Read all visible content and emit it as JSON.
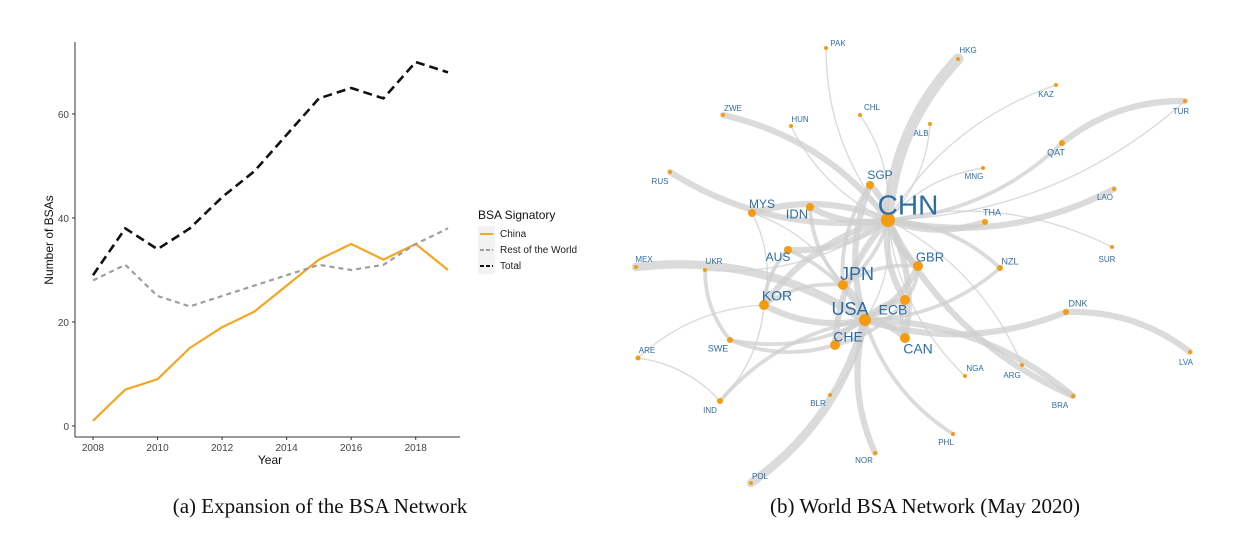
{
  "chart_data": [
    {
      "type": "line",
      "caption": "(a) Expansion of the BSA Network",
      "xlabel": "Year",
      "ylabel": "Number of BSAs",
      "x": [
        2008,
        2009,
        2010,
        2011,
        2012,
        2013,
        2014,
        2015,
        2016,
        2017,
        2018,
        2019
      ],
      "xticks": [
        "2008",
        "2010",
        "2012",
        "2014",
        "2016",
        "2018"
      ],
      "yticks": [
        "0",
        "20",
        "40",
        "60"
      ],
      "xlim": [
        2007.5,
        2019.5
      ],
      "ylim": [
        -2,
        72
      ],
      "grid": false,
      "legend": {
        "title": "BSA Signatory",
        "placement": "right"
      },
      "series": [
        {
          "name": "China",
          "color": "#F5A623",
          "style": "solid",
          "values": [
            1,
            7,
            9,
            15,
            19,
            22,
            27,
            32,
            35,
            32,
            35,
            30
          ]
        },
        {
          "name": "Rest of the World",
          "color": "#9E9E9E",
          "style": "dotted-dash",
          "values": [
            28,
            31,
            25,
            23,
            25,
            27,
            29,
            31,
            30,
            31,
            35,
            38
          ]
        },
        {
          "name": "Total",
          "color": "#111111",
          "style": "dashed",
          "values": [
            29,
            38,
            34,
            38,
            44,
            49,
            56,
            63,
            65,
            63,
            70,
            68
          ]
        }
      ]
    },
    {
      "type": "network",
      "caption": "(b) World BSA Network (May 2020)",
      "node_color": "#F39C12",
      "label_color": "#2E6DA4",
      "edge_color": "#CFCFCF",
      "nodes": [
        "CHN",
        "USA",
        "JPN",
        "KOR",
        "ECB",
        "CHE",
        "CAN",
        "GBR",
        "AUS",
        "IDN",
        "MYS",
        "SGP",
        "THA",
        "NZL",
        "SWE",
        "UKR",
        "MEX",
        "ARE",
        "IND",
        "BLR",
        "NOR",
        "POL",
        "PHL",
        "NGA",
        "BRA",
        "ARG",
        "DNK",
        "LVA",
        "SUR",
        "LAO",
        "TUR",
        "QAT",
        "KAZ",
        "MNG",
        "ALB",
        "HKG",
        "PAK",
        "CHL",
        "HUN",
        "ZWE",
        "RUS"
      ],
      "edges": [
        [
          "CHN",
          "HKG",
          5
        ],
        [
          "CHN",
          "TUR",
          1
        ],
        [
          "QAT",
          "TUR",
          3
        ],
        [
          "CHN",
          "QAT",
          2
        ],
        [
          "CHN",
          "KAZ",
          1
        ],
        [
          "CHN",
          "LAO",
          3
        ],
        [
          "CHN",
          "MNG",
          1
        ],
        [
          "CHN",
          "ALB",
          1
        ],
        [
          "CHN",
          "PAK",
          1
        ],
        [
          "CHN",
          "CHL",
          1
        ],
        [
          "CHN",
          "HUN",
          1
        ],
        [
          "CHN",
          "ZWE",
          3
        ],
        [
          "CHN",
          "RUS",
          3
        ],
        [
          "CHN",
          "THA",
          3
        ],
        [
          "CHN",
          "SUR",
          1
        ],
        [
          "CHN",
          "MYS",
          3
        ],
        [
          "CHN",
          "IDN",
          3
        ],
        [
          "CHN",
          "SGP",
          3
        ],
        [
          "CHN",
          "AUS",
          3
        ],
        [
          "CHN",
          "KOR",
          3
        ],
        [
          "CHN",
          "JPN",
          2
        ],
        [
          "CHN",
          "GBR",
          3
        ],
        [
          "CHN",
          "NZL",
          2
        ],
        [
          "CHN",
          "ECB",
          3
        ],
        [
          "CHN",
          "CAN",
          3
        ],
        [
          "CHN",
          "CHE",
          3
        ],
        [
          "CHN",
          "ARG",
          1
        ],
        [
          "CHN",
          "NGA",
          1
        ],
        [
          "CHN",
          "UKR",
          1
        ],
        [
          "CHN",
          "BRA",
          3
        ],
        [
          "CHN",
          "USA",
          1
        ],
        [
          "USA",
          "JPN",
          3
        ],
        [
          "USA",
          "ECB",
          3
        ],
        [
          "USA",
          "CHE",
          3
        ],
        [
          "USA",
          "CAN",
          3
        ],
        [
          "USA",
          "GBR",
          3
        ],
        [
          "USA",
          "KOR",
          3
        ],
        [
          "USA",
          "MEX",
          4
        ],
        [
          "USA",
          "SWE",
          2
        ],
        [
          "USA",
          "DNK",
          3
        ],
        [
          "DNK",
          "LVA",
          3
        ],
        [
          "USA",
          "NOR",
          3
        ],
        [
          "USA",
          "POL",
          4
        ],
        [
          "USA",
          "PHL",
          2
        ],
        [
          "USA",
          "BLR",
          1
        ],
        [
          "USA",
          "IND",
          2
        ],
        [
          "USA",
          "SGP",
          3
        ],
        [
          "USA",
          "AUS",
          2
        ],
        [
          "USA",
          "BRA",
          3
        ],
        [
          "USA",
          "NZL",
          2
        ],
        [
          "JPN",
          "IDN",
          2
        ],
        [
          "JPN",
          "MYS",
          1
        ],
        [
          "JPN",
          "SGP",
          2
        ],
        [
          "JPN",
          "KOR",
          2
        ],
        [
          "JPN",
          "GBR",
          2
        ],
        [
          "ECB",
          "GBR",
          2
        ],
        [
          "ECB",
          "CHE",
          2
        ],
        [
          "ECB",
          "CAN",
          2
        ],
        [
          "KOR",
          "IND",
          1
        ],
        [
          "KOR",
          "ARE",
          1
        ],
        [
          "ARE",
          "IND",
          1
        ],
        [
          "KOR",
          "MYS",
          1
        ],
        [
          "KOR",
          "AUS",
          2
        ],
        [
          "UKR",
          "SWE",
          2
        ],
        [
          "CHE",
          "SWE",
          2
        ]
      ]
    }
  ]
}
